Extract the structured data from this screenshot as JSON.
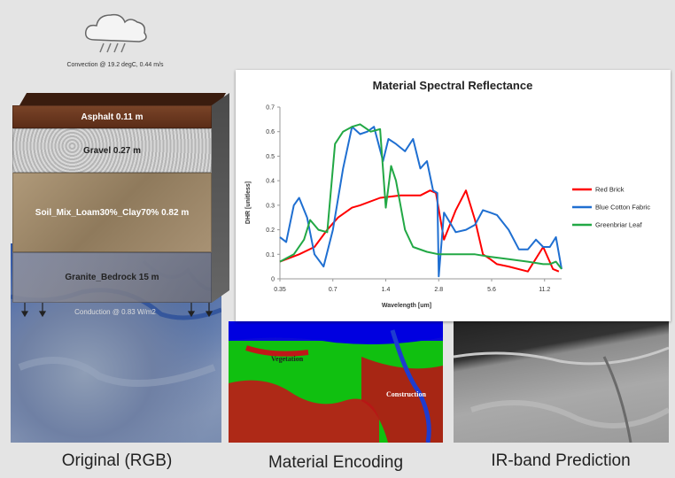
{
  "convection_label": "Convection @ 19.2 degC, 0.44 m/s",
  "conduction_label": "Conduction @ 0.83 W/m2",
  "layers": [
    {
      "label": "Asphalt  0.11 m",
      "color": "#6d3a22"
    },
    {
      "label": "Gravel  0.27 m",
      "color": "#c4c4c4"
    },
    {
      "label": "Soil_Mix_Loam30%_Clay70%  0.82 m",
      "color": "#a38f70"
    },
    {
      "label": "Granite_Bedrock  15 m",
      "color": "#8c8c8c"
    }
  ],
  "encoding_labels": {
    "vegetation": "Vegetation",
    "construction": "Construction"
  },
  "captions": {
    "rgb": "Original (RGB)",
    "encoding": "Material Encoding",
    "ir": "IR-band Prediction"
  },
  "chart_data": {
    "type": "line",
    "title": "Material Spectral Reflectance",
    "xlabel": "Wavelength [um]",
    "ylabel": "DHR [unitless]",
    "x_scale": "log",
    "xlim": [
      0.35,
      14
    ],
    "ylim": [
      0,
      0.7
    ],
    "x_ticks": [
      0.35,
      0.7,
      1.4,
      2.8,
      5.6,
      11.2
    ],
    "x_tick_labels": [
      "0.35",
      "0.7",
      "1.4",
      "2.8",
      "5.6",
      "11.2"
    ],
    "y_ticks": [
      0,
      0.1,
      0.2,
      0.3,
      0.4,
      0.5,
      0.6,
      0.7
    ],
    "y_tick_labels": [
      "0",
      "0.1",
      "0.2",
      "0.3",
      "0.4",
      "0.5",
      "0.6",
      "0.7"
    ],
    "legend_position": "right",
    "series": [
      {
        "name": "Red Brick",
        "color": "#ff0000",
        "x": [
          0.35,
          0.45,
          0.55,
          0.65,
          0.75,
          0.9,
          1.0,
          1.3,
          1.7,
          2.2,
          2.5,
          2.7,
          3.0,
          3.5,
          4.0,
          4.5,
          5.0,
          5.5,
          6.0,
          7.0,
          9.0,
          11.0,
          12.5,
          13.5
        ],
        "y": [
          0.07,
          0.1,
          0.13,
          0.2,
          0.25,
          0.29,
          0.3,
          0.33,
          0.34,
          0.34,
          0.36,
          0.35,
          0.16,
          0.28,
          0.36,
          0.24,
          0.1,
          0.08,
          0.06,
          0.05,
          0.03,
          0.13,
          0.04,
          0.03
        ]
      },
      {
        "name": "Blue Cotton Fabric",
        "color": "#1f6fd1",
        "x": [
          0.35,
          0.38,
          0.42,
          0.45,
          0.5,
          0.55,
          0.62,
          0.7,
          0.8,
          0.9,
          1.0,
          1.1,
          1.2,
          1.35,
          1.45,
          1.6,
          1.8,
          2.0,
          2.2,
          2.4,
          2.6,
          2.75,
          2.8,
          3.0,
          3.5,
          4.0,
          4.5,
          5.0,
          5.5,
          6.0,
          7.0,
          8.0,
          9.0,
          10.0,
          11.0,
          12.0,
          13.0,
          14.0
        ],
        "y": [
          0.17,
          0.15,
          0.3,
          0.33,
          0.25,
          0.1,
          0.05,
          0.2,
          0.45,
          0.62,
          0.59,
          0.6,
          0.62,
          0.48,
          0.57,
          0.55,
          0.52,
          0.57,
          0.45,
          0.48,
          0.36,
          0.35,
          0.01,
          0.27,
          0.19,
          0.2,
          0.22,
          0.28,
          0.27,
          0.26,
          0.2,
          0.12,
          0.12,
          0.16,
          0.13,
          0.13,
          0.17,
          0.04
        ]
      },
      {
        "name": "Greenbriar Leaf",
        "color": "#22a845",
        "x": [
          0.35,
          0.42,
          0.48,
          0.52,
          0.58,
          0.65,
          0.72,
          0.8,
          0.9,
          1.0,
          1.15,
          1.3,
          1.4,
          1.5,
          1.6,
          1.8,
          2.0,
          2.4,
          2.8,
          3.5,
          4.5,
          5.5,
          7.0,
          9.0,
          11.0,
          12.0,
          13.0,
          14.0
        ],
        "y": [
          0.07,
          0.1,
          0.16,
          0.24,
          0.2,
          0.19,
          0.55,
          0.6,
          0.62,
          0.63,
          0.6,
          0.61,
          0.29,
          0.46,
          0.4,
          0.2,
          0.13,
          0.11,
          0.1,
          0.1,
          0.1,
          0.09,
          0.08,
          0.07,
          0.06,
          0.06,
          0.07,
          0.04
        ]
      }
    ]
  }
}
